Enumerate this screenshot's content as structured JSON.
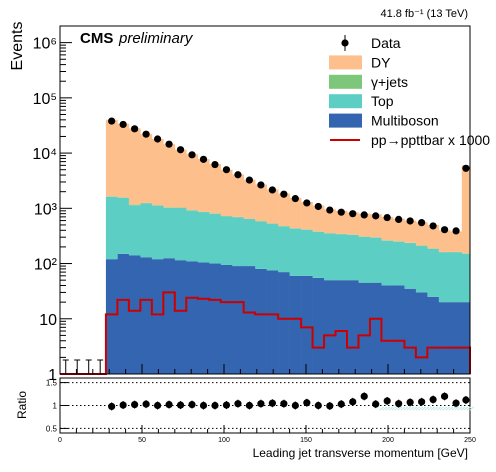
{
  "chart_data": [
    {
      "type": "bar",
      "panel": "main",
      "title": "",
      "xlabel": "",
      "ylabel": "Events",
      "lumi_label": "41.8 fb⁻¹ (13 TeV)",
      "experiment_label": "CMS",
      "status_label": "preliminary",
      "x_edges": [
        0,
        7,
        14,
        21,
        28,
        35,
        42,
        49,
        56,
        63,
        70,
        77,
        84,
        91,
        98,
        105,
        112,
        119,
        126,
        133,
        140,
        147,
        154,
        161,
        168,
        175,
        182,
        189,
        196,
        203,
        210,
        217,
        224,
        231,
        238,
        245,
        250
      ],
      "xlim": [
        0,
        250
      ],
      "ylim": [
        1,
        2000000
      ],
      "y_scale": "log",
      "y_ticks": [
        {
          "v": 1,
          "label": "1"
        },
        {
          "v": 10,
          "label": "10"
        },
        {
          "v": 100,
          "label": "10²"
        },
        {
          "v": 1000,
          "label": "10³"
        },
        {
          "v": 10000,
          "label": "10⁴"
        },
        {
          "v": 100000,
          "label": "10⁵"
        },
        {
          "v": 1000000,
          "label": "10⁶"
        }
      ],
      "stack_order": [
        "Multiboson",
        "Top",
        "γ+jets",
        "DY"
      ],
      "stack_totals": [
        0,
        0,
        0,
        0,
        40000,
        34000,
        28000,
        22000,
        18000,
        14500,
        11500,
        9500,
        7800,
        6300,
        5000,
        4100,
        3300,
        2700,
        2200,
        1850,
        1550,
        1300,
        1120,
        960,
        900,
        840,
        800,
        780,
        700,
        650,
        600,
        560,
        500,
        400,
        380,
        6000
      ],
      "series": [
        {
          "name": "Multiboson",
          "color": "#3465b0",
          "values": [
            0,
            0,
            0,
            0,
            120,
            150,
            140,
            130,
            120,
            125,
            115,
            110,
            105,
            100,
            95,
            90,
            90,
            80,
            75,
            70,
            60,
            60,
            55,
            50,
            50,
            50,
            45,
            45,
            40,
            40,
            35,
            30,
            25,
            20,
            20,
            20
          ]
        },
        {
          "name": "Top",
          "color": "#5dcec3",
          "values": [
            0,
            0,
            0,
            0,
            1500,
            1400,
            1000,
            1100,
            1000,
            900,
            900,
            800,
            750,
            700,
            620,
            600,
            550,
            500,
            450,
            400,
            370,
            350,
            320,
            300,
            290,
            280,
            260,
            250,
            220,
            210,
            200,
            180,
            160,
            140,
            140,
            130
          ]
        },
        {
          "name": "γ+jets",
          "color": "#7cc779",
          "values": [
            0,
            0,
            0,
            0,
            30,
            28,
            25,
            22,
            20,
            18,
            16,
            14,
            12,
            11,
            10,
            9,
            8,
            7,
            6,
            6,
            5,
            5,
            4,
            4,
            4,
            3,
            3,
            3,
            3,
            2,
            2,
            2,
            2,
            2,
            2,
            3
          ]
        },
        {
          "name": "DY",
          "color": "#fdc08d",
          "values": [
            0,
            0,
            0,
            0,
            38350,
            32422,
            26835,
            20748,
            16860,
            13457,
            10469,
            8576,
            6933,
            5489,
            4275,
            3401,
            2652,
            2113,
            1669,
            1374,
            1115,
            885,
            741,
            606,
            556,
            507,
            492,
            482,
            437,
            398,
            363,
            348,
            313,
            238,
            218,
            5847
          ]
        }
      ],
      "data_series": {
        "name": "Data",
        "values": [
          0,
          0,
          0,
          0,
          38000,
          33000,
          27500,
          22000,
          18000,
          14500,
          11500,
          9300,
          7700,
          6200,
          5000,
          4050,
          3250,
          2650,
          2150,
          1800,
          1500,
          1250,
          1080,
          930,
          850,
          800,
          760,
          730,
          680,
          630,
          590,
          550,
          480,
          410,
          390,
          5300
        ]
      },
      "signal_series": {
        "name": "pp→ppttbar x 1000",
        "color": "#cc0000",
        "values": [
          0,
          0,
          0,
          0,
          12,
          22,
          14,
          22,
          12,
          30,
          14,
          24,
          23,
          22,
          20,
          20,
          13,
          12,
          12,
          10,
          10,
          7,
          3,
          5,
          6,
          3,
          5,
          10,
          4,
          4,
          3,
          2,
          3,
          3,
          3,
          3
        ]
      },
      "legend_labels": [
        "Data",
        "DY",
        "γ+jets",
        "Top",
        "Multiboson",
        "pp→ppttbar x 1000"
      ],
      "legend_position": "top-right"
    },
    {
      "type": "scatter",
      "panel": "ratio",
      "xlabel": "Leading jet transverse momentum [GeV]",
      "ylabel": "Ratio",
      "xlim": [
        0,
        250
      ],
      "ylim": [
        0.4,
        1.6
      ],
      "x_ticks": [
        0,
        50,
        100,
        150,
        200,
        250
      ],
      "y_ticks": [
        0.5,
        1,
        1.5
      ],
      "x": [
        31.5,
        38.5,
        45.5,
        52.5,
        59.5,
        66.5,
        73.5,
        80.5,
        87.5,
        94.5,
        101.5,
        108.5,
        115.5,
        122.5,
        129.5,
        136.5,
        143.5,
        150.5,
        157.5,
        164.5,
        171.5,
        178.5,
        185.5,
        192.5,
        199.5,
        206.5,
        213.5,
        220.5,
        227.5,
        234.5,
        241.5,
        247.5
      ],
      "y": [
        0.98,
        1.01,
        1.02,
        1.03,
        1.0,
        1.02,
        1.01,
        1.02,
        1.0,
        1.0,
        1.01,
        1.04,
        1.0,
        1.04,
        1.05,
        1.04,
        1.0,
        1.06,
        1.0,
        0.99,
        1.03,
        1.08,
        1.2,
        1.03,
        1.1,
        1.04,
        1.07,
        1.08,
        1.13,
        1.2,
        1.05,
        1.12
      ]
    }
  ]
}
